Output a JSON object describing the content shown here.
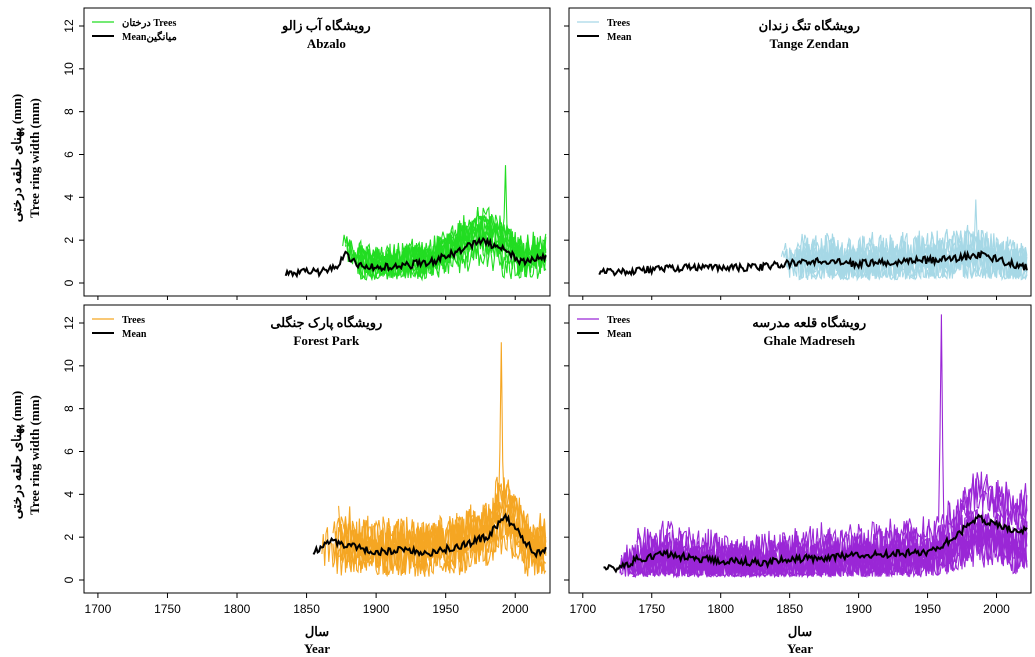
{
  "chart_data": [
    {
      "type": "line",
      "panel": "top-left",
      "title_fa": "رویشگاه آب زالو",
      "title_en": "Abzalo",
      "legend": [
        "درختان Trees",
        "Meanمیانگین"
      ],
      "trees_color": "#22dd22",
      "mean_color": "#000000",
      "xlim": [
        1690,
        2025
      ],
      "ylim": [
        0,
        12
      ],
      "mean": {
        "start": 1835,
        "end": 2022,
        "anchors": [
          [
            1835,
            0.45
          ],
          [
            1850,
            0.5
          ],
          [
            1865,
            0.55
          ],
          [
            1872,
            0.8
          ],
          [
            1878,
            1.4
          ],
          [
            1885,
            0.9
          ],
          [
            1900,
            0.7
          ],
          [
            1920,
            0.8
          ],
          [
            1940,
            1.0
          ],
          [
            1960,
            1.5
          ],
          [
            1975,
            2.0
          ],
          [
            1990,
            1.6
          ],
          [
            2005,
            1.0
          ],
          [
            2022,
            1.2
          ]
        ]
      },
      "trees": {
        "count": 10,
        "start": 1875,
        "end": 2022,
        "spread": 1.0,
        "peak": 5.5
      }
    },
    {
      "type": "line",
      "panel": "top-right",
      "title_fa": "رویشگاه تنگ زندان",
      "title_en": "Tange Zendan",
      "legend": [
        "Trees",
        "Mean"
      ],
      "trees_color": "#a6d8e6",
      "mean_color": "#000000",
      "xlim": [
        1690,
        2025
      ],
      "ylim": [
        0,
        12
      ],
      "mean": {
        "start": 1712,
        "end": 2022,
        "anchors": [
          [
            1712,
            0.5
          ],
          [
            1740,
            0.6
          ],
          [
            1770,
            0.7
          ],
          [
            1800,
            0.7
          ],
          [
            1830,
            0.75
          ],
          [
            1850,
            0.9
          ],
          [
            1870,
            1.0
          ],
          [
            1900,
            0.9
          ],
          [
            1930,
            1.0
          ],
          [
            1960,
            1.1
          ],
          [
            1990,
            1.3
          ],
          [
            2005,
            1.0
          ],
          [
            2022,
            0.7
          ]
        ]
      },
      "trees": {
        "count": 10,
        "start": 1840,
        "end": 2022,
        "spread": 1.2,
        "peak": 3.9
      }
    },
    {
      "type": "line",
      "panel": "bottom-left",
      "title_fa": "رویشگاه پارک جنگلی",
      "title_en": "Forest Park",
      "legend": [
        "Trees",
        "Mean"
      ],
      "trees_color": "#f5a623",
      "mean_color": "#000000",
      "xlim": [
        1690,
        2025
      ],
      "ylim": [
        0,
        12
      ],
      "xticks": [
        1700,
        1750,
        1800,
        1850,
        1900,
        1950,
        2000
      ],
      "mean": {
        "start": 1855,
        "end": 2022,
        "anchors": [
          [
            1855,
            1.3
          ],
          [
            1865,
            1.8
          ],
          [
            1880,
            1.6
          ],
          [
            1900,
            1.3
          ],
          [
            1920,
            1.4
          ],
          [
            1940,
            1.3
          ],
          [
            1960,
            1.6
          ],
          [
            1980,
            2.0
          ],
          [
            1992,
            3.0
          ],
          [
            2005,
            2.0
          ],
          [
            2015,
            1.2
          ],
          [
            2022,
            1.5
          ]
        ]
      },
      "trees": {
        "count": 10,
        "start": 1860,
        "end": 2022,
        "spread": 1.5,
        "peak": 11.1
      }
    },
    {
      "type": "line",
      "panel": "bottom-right",
      "title_fa": "رویشگاه قلعه مدرسه",
      "title_en": "Ghale Madreseh",
      "legend": [
        "Trees",
        "Mean"
      ],
      "trees_color": "#9a27d6",
      "mean_color": "#000000",
      "xlim": [
        1690,
        2025
      ],
      "ylim": [
        0,
        12
      ],
      "xticks": [
        1700,
        1750,
        1800,
        1850,
        1900,
        1950,
        2000
      ],
      "mean": {
        "start": 1715,
        "end": 2022,
        "anchors": [
          [
            1715,
            0.7
          ],
          [
            1725,
            0.5
          ],
          [
            1740,
            1.0
          ],
          [
            1760,
            1.2
          ],
          [
            1780,
            1.0
          ],
          [
            1800,
            0.9
          ],
          [
            1830,
            0.8
          ],
          [
            1860,
            1.0
          ],
          [
            1890,
            1.1
          ],
          [
            1920,
            1.2
          ],
          [
            1950,
            1.3
          ],
          [
            1970,
            2.0
          ],
          [
            1985,
            2.9
          ],
          [
            2000,
            2.6
          ],
          [
            2015,
            2.2
          ],
          [
            2022,
            2.4
          ]
        ]
      },
      "trees": {
        "count": 12,
        "start": 1725,
        "end": 2022,
        "spread": 1.4,
        "peak": 12.4
      }
    }
  ],
  "axes": {
    "yticks": [
      0,
      2,
      4,
      6,
      8,
      10,
      12
    ],
    "ylabel_fa": "پهنای حلقه درختی (mm)",
    "ylabel_en": "Tree ring width (mm)",
    "xlabel_fa": "سال",
    "xlabel_en": "Year"
  }
}
